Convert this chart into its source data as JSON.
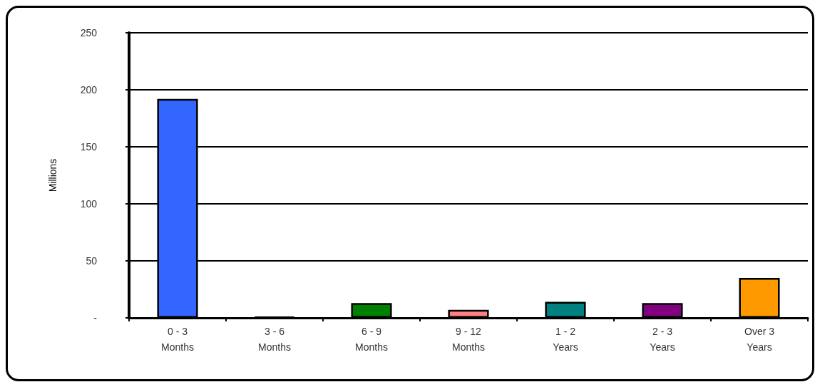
{
  "chart_data": {
    "type": "bar",
    "ylabel": "Millions",
    "categories": [
      "0 - 3\nMonths",
      "3 - 6\nMonths",
      "6 - 9\nMonths",
      "9 - 12\nMonths",
      "1 - 2\nYears",
      "2 - 3\nYears",
      "Over 3\nYears"
    ],
    "values": [
      192,
      1,
      13,
      7,
      14,
      13,
      35
    ],
    "colors": [
      "#3366ff",
      "#000000",
      "#008000",
      "#ff8080",
      "#008080",
      "#800080",
      "#ff9900"
    ],
    "ylim": [
      0,
      250
    ],
    "yticks": [
      {
        "value": 0,
        "label": "-"
      },
      50,
      100,
      150,
      200,
      250
    ],
    "grid": "y"
  }
}
